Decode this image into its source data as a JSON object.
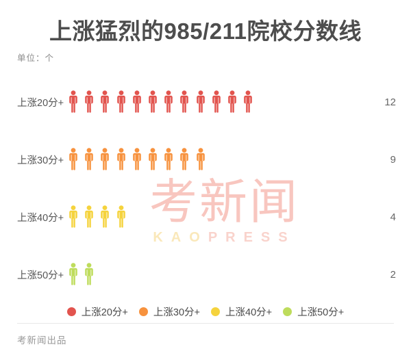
{
  "header": {
    "title": "上涨猛烈的985/211院校分数线",
    "unit": "单位：个"
  },
  "chart_data": {
    "type": "bar",
    "variant": "pictogram",
    "title": "上涨猛烈的985/211院校分数线",
    "unit": "个",
    "categories": [
      "上涨20分+",
      "上涨30分+",
      "上涨40分+",
      "上涨50分+"
    ],
    "values": [
      12,
      9,
      4,
      2
    ],
    "colors": [
      "#e2544e",
      "#f7923e",
      "#f5d33d",
      "#bedc5c"
    ],
    "icon": "person-icon",
    "legend_position": "bottom",
    "legend": [
      {
        "label": "上涨20分+",
        "color": "#e2544e"
      },
      {
        "label": "上涨30分+",
        "color": "#f7923e"
      },
      {
        "label": "上涨40分+",
        "color": "#f5d33d"
      },
      {
        "label": "上涨50分+",
        "color": "#bedc5c"
      }
    ]
  },
  "watermark": {
    "cn": "考新闻",
    "en_left": "KAO",
    "en_right": "PRESS"
  },
  "footer": {
    "credit": "考新闻出品"
  }
}
